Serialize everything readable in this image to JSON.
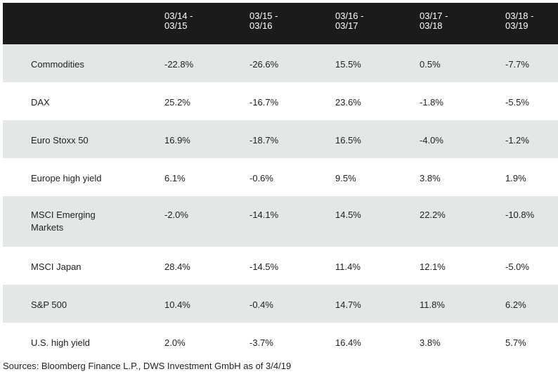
{
  "table": {
    "header": {
      "columns": [
        "03/14 - 03/15",
        "03/15 - 03/16",
        "03/16 - 03/17",
        "03/17 - 03/18",
        "03/18 - 03/19"
      ]
    },
    "rows": [
      {
        "label": "Commodities",
        "values": [
          "-22.8%",
          "-26.6%",
          "15.5%",
          "0.5%",
          "-7.7%"
        ]
      },
      {
        "label": "DAX",
        "values": [
          "25.2%",
          "-16.7%",
          "23.6%",
          "-1.8%",
          "-5.5%"
        ]
      },
      {
        "label": "Euro Stoxx 50",
        "values": [
          "16.9%",
          "-18.7%",
          "16.5%",
          "-4.0%",
          "-1.2%"
        ]
      },
      {
        "label": "Europe high yield",
        "values": [
          "6.1%",
          "-0.6%",
          "9.5%",
          "3.8%",
          "1.9%"
        ]
      },
      {
        "label": "MSCI Emerging Markets",
        "values": [
          "-2.0%",
          "-14.1%",
          "14.5%",
          "22.2%",
          "-10.8%"
        ]
      },
      {
        "label": "MSCI Japan",
        "values": [
          "28.4%",
          "-14.5%",
          "11.4%",
          "12.1%",
          "-5.0%"
        ]
      },
      {
        "label": "S&P 500",
        "values": [
          "10.4%",
          "-0.4%",
          "14.7%",
          "11.8%",
          "6.2%"
        ]
      },
      {
        "label": "U.S. high yield",
        "values": [
          "2.0%",
          "-3.7%",
          "16.4%",
          "3.8%",
          "5.7%"
        ]
      }
    ]
  },
  "footer": {
    "source": "Sources: Bloomberg Finance L.P., DWS Investment GmbH as of 3/4/19"
  },
  "colors": {
    "header_background": "#1b1b1b",
    "alternate_row_background": "#e4e7e8",
    "text": "#222222"
  }
}
